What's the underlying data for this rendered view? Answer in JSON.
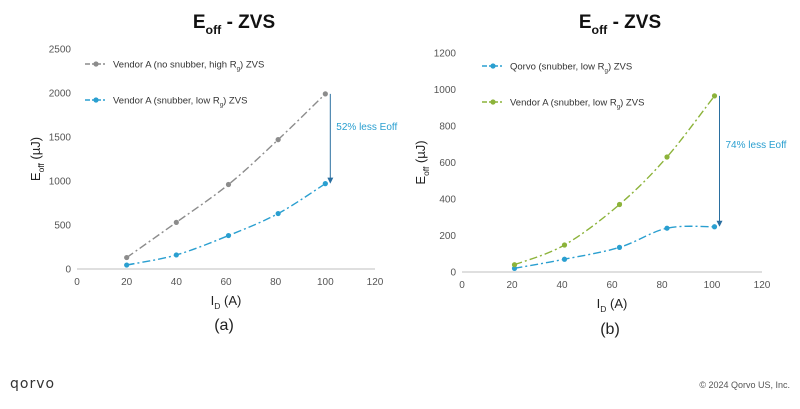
{
  "chart_data": [
    {
      "type": "line",
      "title": "E",
      "title_sub": "off",
      "title_rest": " - ZVS",
      "ylabel": "E",
      "ylabel_sub": "off",
      "ylabel_rest": " (µJ)",
      "xlabel": "I",
      "xlabel_sub": "D",
      "xlabel_rest": " (A)",
      "xlim": [
        0,
        120
      ],
      "ylim": [
        0,
        2500
      ],
      "xticks": [
        "0",
        "20",
        "40",
        "60",
        "80",
        "100",
        "120"
      ],
      "yticks": [
        "0",
        "500",
        "1000",
        "1500",
        "2000",
        "2500"
      ],
      "grid": false,
      "legend": "top-left",
      "panel_label": "(a)",
      "series": [
        {
          "name": "Vendor A (no snubber, high R",
          "name_sub": "g",
          "name_rest": ") ZVS",
          "color": "#8c8c8c",
          "x": [
            20,
            40,
            61,
            81,
            100
          ],
          "y": [
            130,
            530,
            960,
            1470,
            1990
          ]
        },
        {
          "name": "Vendor A (snubber, low R",
          "name_sub": "g",
          "name_rest": ") ZVS",
          "color": "#2a9fd0",
          "x": [
            20,
            40,
            61,
            81,
            100
          ],
          "y": [
            45,
            160,
            380,
            630,
            970
          ]
        }
      ],
      "annotation": {
        "text": "52% less Eoff",
        "color": "#2a9fd0",
        "x": 102,
        "from": 1990,
        "to": 970
      }
    },
    {
      "type": "line",
      "title": "E",
      "title_sub": "off",
      "title_rest": " - ZVS",
      "ylabel": "E",
      "ylabel_sub": "off",
      "ylabel_rest": " (µJ)",
      "xlabel": "I",
      "xlabel_sub": "D",
      "xlabel_rest": " (A)",
      "xlim": [
        0,
        120
      ],
      "ylim": [
        0,
        1200
      ],
      "xticks": [
        "0",
        "20",
        "40",
        "60",
        "80",
        "100",
        "120"
      ],
      "yticks": [
        "0",
        "200",
        "400",
        "600",
        "800",
        "1000",
        "1200"
      ],
      "grid": false,
      "legend": "top-left",
      "panel_label": "(b)",
      "series": [
        {
          "name": "Qorvo (snubber, low R",
          "name_sub": "g",
          "name_rest": ") ZVS",
          "color": "#2a9fd0",
          "x": [
            21,
            41,
            63,
            82,
            101
          ],
          "y": [
            20,
            70,
            135,
            240,
            248
          ]
        },
        {
          "name": "Vendor A (snubber, low R",
          "name_sub": "g",
          "name_rest": ") ZVS",
          "color": "#8cb33a",
          "x": [
            21,
            41,
            63,
            82,
            101
          ],
          "y": [
            40,
            148,
            370,
            630,
            965
          ]
        }
      ],
      "annotation": {
        "text": "74% less Eoff",
        "color": "#2a9fd0",
        "x": 103,
        "from": 965,
        "to": 248
      }
    }
  ],
  "footer": {
    "logo": "qorvo",
    "copyright": "© 2024 Qorvo US, Inc."
  }
}
